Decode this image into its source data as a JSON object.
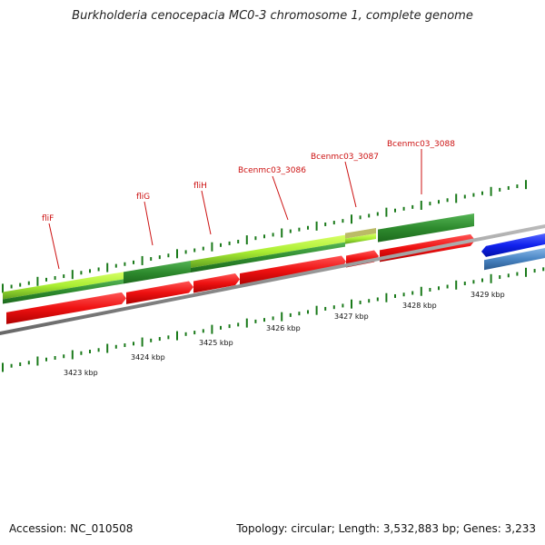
{
  "title": "Burkholderia cenocepacia MC0-3 chromosome 1, complete genome",
  "footer": {
    "accession": "Accession: NC_010508",
    "summary": "Topology: circular; Length: 3,532,883 bp; Genes: 3,233"
  },
  "colors": {
    "cds": "#ee1111",
    "gene_dark": "#2e8b2e",
    "gene_light": "#aaee33",
    "pseudo": "#bbbb66",
    "other_strand": "#1122ee",
    "other_strand_light": "#4a86c4",
    "backbone": "#888888",
    "tick": "#1a7a1a",
    "label": "#cc1111"
  },
  "gene_labels": [
    {
      "name": "fliF"
    },
    {
      "name": "fliG"
    },
    {
      "name": "fliH"
    },
    {
      "name": "Bcenmc03_3086"
    },
    {
      "name": "Bcenmc03_3087"
    },
    {
      "name": "Bcenmc03_3088"
    }
  ],
  "kbp_labels": [
    "3423 kbp",
    "3424 kbp",
    "3425 kbp",
    "3426 kbp",
    "3427 kbp",
    "3428 kbp",
    "3429 kbp"
  ]
}
